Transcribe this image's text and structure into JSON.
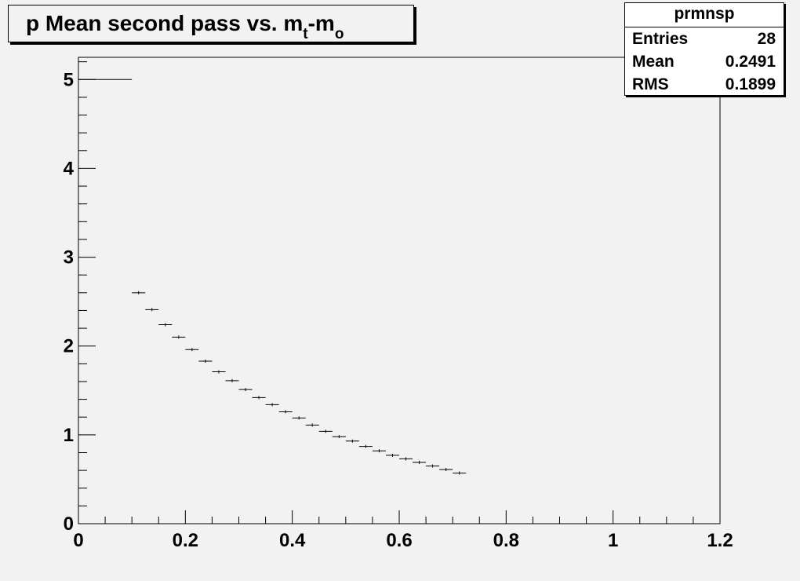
{
  "title": {
    "main": "p Mean second pass vs. m",
    "sub1": "t",
    "mid": "-m",
    "sub2": "o"
  },
  "stats": {
    "name": "prmnsp",
    "rows": [
      {
        "label": "Entries",
        "value": "28"
      },
      {
        "label": "Mean",
        "value": "0.2491"
      },
      {
        "label": "RMS",
        "value": "0.1899"
      }
    ]
  },
  "colors": {
    "background": "#f2f2f2",
    "frame": "#000000",
    "marker": "#000000"
  },
  "chart_data": {
    "type": "scatter",
    "title": "p Mean second pass vs. m_t-m_o",
    "xlim": [
      0,
      1.2
    ],
    "ylim": [
      0,
      5.25
    ],
    "grid": false,
    "x_ticks": [
      {
        "v": 0,
        "label": "0"
      },
      {
        "v": 0.2,
        "label": "0.2"
      },
      {
        "v": 0.4,
        "label": "0.4"
      },
      {
        "v": 0.6,
        "label": "0.6"
      },
      {
        "v": 0.8,
        "label": "0.8"
      },
      {
        "v": 1.0,
        "label": "1"
      },
      {
        "v": 1.2,
        "label": "1.2"
      }
    ],
    "y_ticks": [
      {
        "v": 0,
        "label": "0"
      },
      {
        "v": 1,
        "label": "1"
      },
      {
        "v": 2,
        "label": "2"
      },
      {
        "v": 3,
        "label": "3"
      },
      {
        "v": 4,
        "label": "4"
      },
      {
        "v": 5,
        "label": "5"
      }
    ],
    "bin_width": 0.025,
    "points": [
      {
        "x": 0.0125,
        "y": 5.0
      },
      {
        "x": 0.0375,
        "y": 5.0
      },
      {
        "x": 0.0625,
        "y": 5.0
      },
      {
        "x": 0.0875,
        "y": 5.0
      },
      {
        "x": 0.1125,
        "y": 2.6
      },
      {
        "x": 0.1375,
        "y": 2.41
      },
      {
        "x": 0.1625,
        "y": 2.24
      },
      {
        "x": 0.1875,
        "y": 2.1
      },
      {
        "x": 0.2125,
        "y": 1.96
      },
      {
        "x": 0.2375,
        "y": 1.83
      },
      {
        "x": 0.2625,
        "y": 1.71
      },
      {
        "x": 0.2875,
        "y": 1.61
      },
      {
        "x": 0.3125,
        "y": 1.51
      },
      {
        "x": 0.3375,
        "y": 1.42
      },
      {
        "x": 0.3625,
        "y": 1.34
      },
      {
        "x": 0.3875,
        "y": 1.26
      },
      {
        "x": 0.4125,
        "y": 1.19
      },
      {
        "x": 0.4375,
        "y": 1.11
      },
      {
        "x": 0.4625,
        "y": 1.04
      },
      {
        "x": 0.4875,
        "y": 0.98
      },
      {
        "x": 0.5125,
        "y": 0.93
      },
      {
        "x": 0.5375,
        "y": 0.87
      },
      {
        "x": 0.5625,
        "y": 0.82
      },
      {
        "x": 0.5875,
        "y": 0.77
      },
      {
        "x": 0.6125,
        "y": 0.73
      },
      {
        "x": 0.6375,
        "y": 0.69
      },
      {
        "x": 0.6625,
        "y": 0.65
      },
      {
        "x": 0.6875,
        "y": 0.61
      },
      {
        "x": 0.7125,
        "y": 0.57
      }
    ]
  }
}
